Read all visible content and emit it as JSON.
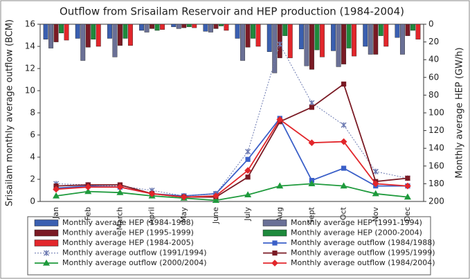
{
  "chart_data": {
    "type": "combo",
    "title": "Outflow from Srisailam Reservoir and HEP production  (1984-2004)",
    "y_label": "Srisailam monthly average outflow (BCM)",
    "y2_label": "Monthly average HEP (GW/h)",
    "categories": [
      "Jan",
      "Feb",
      "March",
      "April",
      "May",
      "June",
      "July",
      "Aug",
      "Sept",
      "Oct",
      "Nov",
      "Dec"
    ],
    "ylim": [
      0,
      16
    ],
    "yticks": [
      0,
      2,
      4,
      6,
      8,
      10,
      12,
      14,
      16
    ],
    "y2lim": [
      200,
      0
    ],
    "y2ticks": [
      0,
      20,
      40,
      60,
      80,
      100,
      120,
      140,
      160,
      180,
      200
    ],
    "grid": false,
    "series": [
      {
        "name": "Monthly average HEP (1984-1988)",
        "type": "bar",
        "axis": "y2",
        "color": "#3a5fb0",
        "values": [
          17,
          16,
          16,
          7,
          3,
          8,
          16,
          31,
          28,
          30,
          25,
          15
        ]
      },
      {
        "name": "Monthly average HEP (1991-1994)",
        "type": "bar",
        "axis": "y2",
        "color": "#6a7096",
        "values": [
          27,
          41,
          37,
          9,
          5,
          9,
          41,
          55,
          47,
          48,
          34,
          34
        ]
      },
      {
        "name": "Monthly average HEP (1995-1999)",
        "type": "bar",
        "axis": "y2",
        "color": "#7a1a24",
        "values": [
          20,
          26,
          24,
          5,
          4,
          5,
          26,
          38,
          51,
          45,
          34,
          13
        ]
      },
      {
        "name": "Monthly average HEP (2000-2004)",
        "type": "bar",
        "axis": "y2",
        "color": "#1e8a3c",
        "values": [
          10,
          17,
          16,
          7,
          3,
          2,
          16,
          13,
          29,
          27,
          13,
          7
        ]
      },
      {
        "name": "Monthly average HEP (1984-2005)",
        "type": "bar",
        "axis": "y2",
        "color": "#e2262b",
        "values": [
          18,
          25,
          24,
          6,
          4,
          7,
          25,
          38,
          37,
          36,
          25,
          17
        ]
      },
      {
        "name": "Monthly average outflow (1984/1988)",
        "type": "line",
        "color": "#3a5fc8",
        "marker": "square",
        "linestyle": "solid",
        "values": [
          1.2,
          1.4,
          1.3,
          0.7,
          0.5,
          0.7,
          3.8,
          7.5,
          1.9,
          3.0,
          1.4,
          1.4
        ]
      },
      {
        "name": "Monthly average outflow (1991/1994)",
        "type": "line",
        "color": "#6a78b0",
        "marker": "asterisk",
        "linestyle": "dotted",
        "values": [
          1.6,
          1.5,
          1.4,
          1.0,
          0.5,
          0.7,
          4.5,
          14.2,
          8.9,
          6.9,
          2.7,
          2.1
        ]
      },
      {
        "name": "Monthly average outflow (1995/1999)",
        "type": "line",
        "color": "#7a1a24",
        "marker": "square",
        "linestyle": "solid",
        "values": [
          1.4,
          1.5,
          1.5,
          0.7,
          0.4,
          0.4,
          2.2,
          7.2,
          8.5,
          10.6,
          1.8,
          2.1
        ]
      },
      {
        "name": "Monthly average outflow (2000/2004)",
        "type": "line",
        "color": "#1e9a3c",
        "marker": "triangle",
        "linestyle": "solid",
        "values": [
          0.5,
          0.9,
          0.8,
          0.5,
          0.3,
          0.1,
          0.6,
          1.4,
          1.6,
          1.4,
          0.7,
          0.4
        ]
      },
      {
        "name": "Monthly average outflow (1984/2004)",
        "type": "line",
        "color": "#e2262b",
        "marker": "diamond",
        "linestyle": "solid",
        "values": [
          1.1,
          1.3,
          1.3,
          0.7,
          0.4,
          0.5,
          2.8,
          7.4,
          5.3,
          5.4,
          1.6,
          1.4
        ]
      }
    ]
  }
}
